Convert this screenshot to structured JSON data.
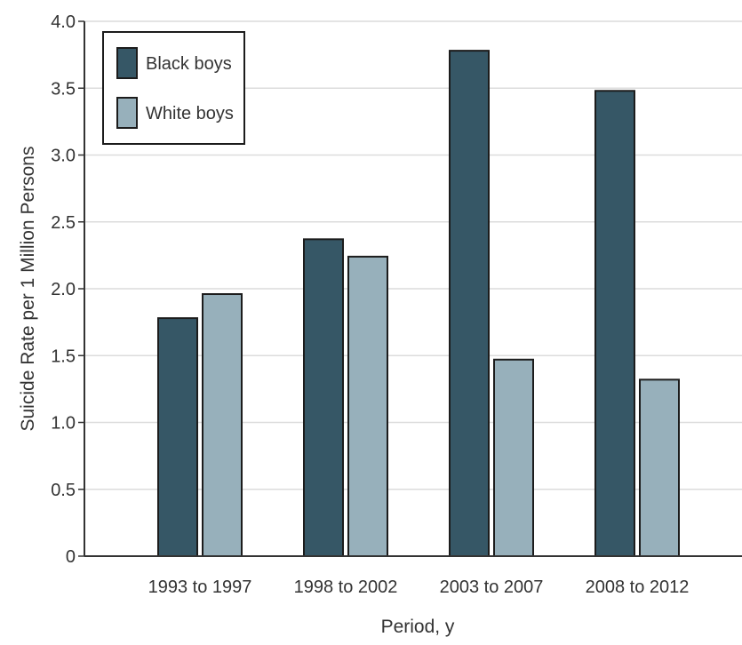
{
  "chart_data": {
    "type": "bar",
    "xlabel": "Period, y",
    "ylabel": "Suicide Rate per 1 Million Persons",
    "ylim": [
      0,
      4.0
    ],
    "yticks": [
      "0",
      "0.5",
      "1.0",
      "1.5",
      "2.0",
      "2.5",
      "3.0",
      "3.5",
      "4.0"
    ],
    "categories": [
      "1993 to 1997",
      "1998 to 2002",
      "2003 to 2007",
      "2008 to 2012"
    ],
    "series": [
      {
        "name": "Black boys",
        "color": "#365766",
        "values": [
          1.78,
          2.37,
          3.78,
          3.48
        ]
      },
      {
        "name": "White boys",
        "color": "#97b0bb",
        "values": [
          1.96,
          2.24,
          1.47,
          1.32
        ]
      }
    ],
    "grid": true,
    "legend_position": "top-left"
  }
}
